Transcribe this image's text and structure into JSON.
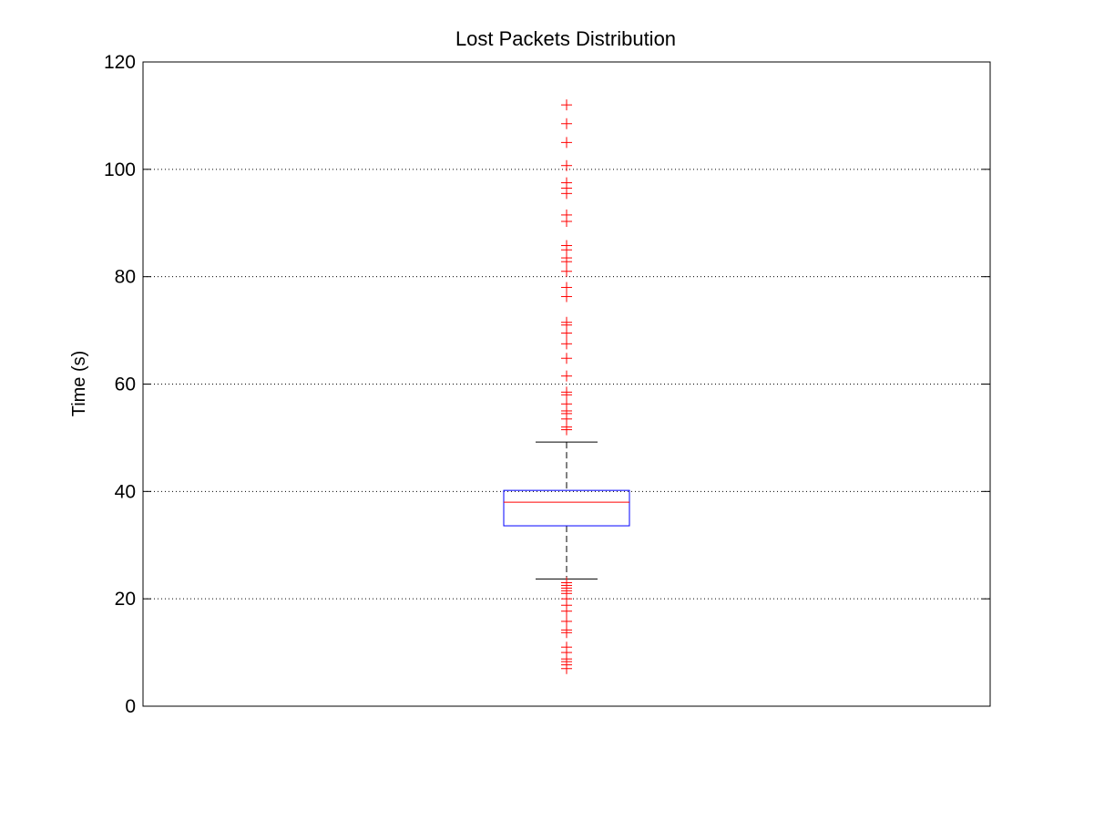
{
  "chart_data": {
    "type": "box",
    "title": "Lost Packets Distribution",
    "xlabel": "",
    "ylabel": "Time (s)",
    "ylim": [
      0,
      120
    ],
    "yticks": [
      0,
      20,
      40,
      60,
      80,
      100,
      120
    ],
    "grid": "y-dotted",
    "box": {
      "whisker_low": 23.7,
      "q1": 33.6,
      "median": 38.0,
      "q3": 40.2,
      "whisker_high": 49.2
    },
    "outliers": [
      112,
      108.5,
      105,
      100.7,
      97.5,
      96.5,
      95.5,
      91.5,
      90.3,
      85.8,
      85,
      83.5,
      82.8,
      81,
      78,
      76.3,
      71.5,
      71,
      69.5,
      67.5,
      64.8,
      61.5,
      58.5,
      58,
      56.3,
      55,
      54.5,
      53.5,
      52,
      51.5,
      23,
      22.5,
      22,
      21.5,
      21,
      20,
      18.8,
      17.7,
      15.8,
      14.2,
      13.7,
      11,
      10,
      8.8,
      8.3,
      7.7,
      7
    ],
    "colors": {
      "box": "#0000ff",
      "median": "#ff0000",
      "outlier": "#ff0000",
      "whisker": "#000000"
    }
  }
}
